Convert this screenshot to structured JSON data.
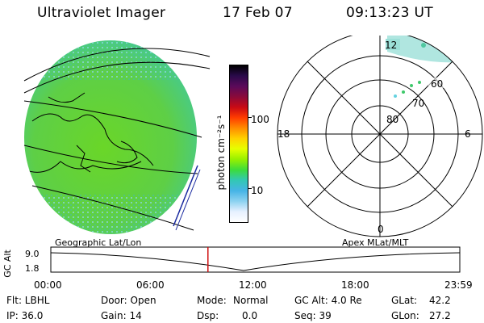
{
  "header": {
    "instrument": "Ultraviolet Imager",
    "date": "17 Feb 07",
    "time": "09:13:23 UT"
  },
  "colorbar": {
    "unit_label": "photon cm⁻²s⁻¹",
    "ticks": [
      "100",
      "10"
    ],
    "colors": [
      "#000000",
      "#2a0a4a",
      "#5a0a5a",
      "#8a0a3a",
      "#c80a14",
      "#ff3c00",
      "#ff8c00",
      "#ffd200",
      "#e6ff00",
      "#96f000",
      "#3cdc3c",
      "#32c8b4",
      "#46b4e6",
      "#8cd2f0",
      "#e6f0ff",
      "#ffffff"
    ]
  },
  "polar_plot": {
    "mlt_labels": {
      "top": "12",
      "left": "18",
      "right": "6",
      "bottom": "0"
    },
    "lat_labels": [
      "60",
      "70",
      "80"
    ]
  },
  "timeline": {
    "left_label": "Geographic Lat/Lon",
    "right_label": "Apex MLat/MLT",
    "y_label": "GC Alt",
    "y_ticks": [
      "9.0",
      "1.8"
    ],
    "x_ticks": [
      "00:00",
      "06:00",
      "12:00",
      "18:00",
      "23:59"
    ],
    "current_marker_hour": 9.22
  },
  "info": {
    "flt": "Flt: LBHL",
    "ip": "IP: 36.0",
    "door": "Door: Open",
    "gain": "Gain: 14",
    "mode_label": "Mode:",
    "mode_value": "Normal",
    "dsp_label": "Dsp:",
    "dsp_value": "0.0",
    "gcalt": "GC Alt: 4.0 Re",
    "seq": "Seq: 39",
    "glat_label": "GLat:",
    "glat_value": "42.2",
    "glon_label": "GLon:",
    "glon_value": "27.2"
  }
}
